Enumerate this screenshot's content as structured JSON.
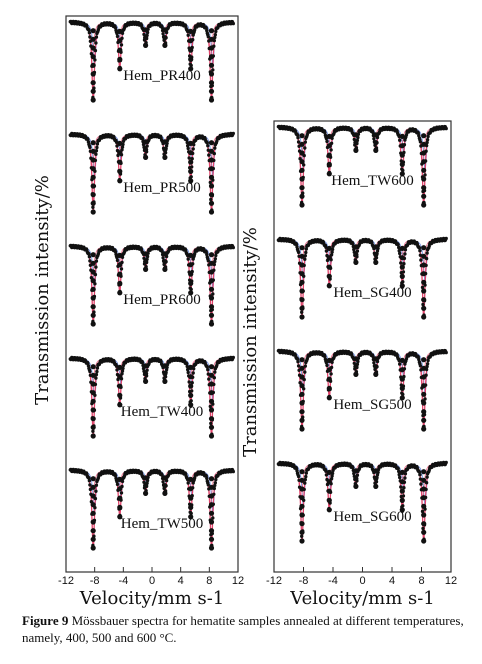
{
  "chart_data": [
    {
      "type": "scatter",
      "xlabel": "Velocity/mm s-1",
      "ylabel": "Transmission intensity/%",
      "xlim": [
        -12,
        12
      ],
      "x_ticks": [
        "-12",
        "-8",
        "-4",
        "0",
        "4",
        "8",
        "12"
      ],
      "panels": [
        {
          "label": "Hem_PR400",
          "line_positions_mm_s": [
            -8.2,
            -4.5,
            -0.9,
            1.8,
            5.4,
            8.3
          ],
          "relative_depth": [
            1.0,
            0.6,
            0.3,
            0.3,
            0.6,
            1.0
          ]
        },
        {
          "label": "Hem_PR500",
          "line_positions_mm_s": [
            -8.2,
            -4.5,
            -0.9,
            1.8,
            5.4,
            8.3
          ],
          "relative_depth": [
            1.0,
            0.6,
            0.3,
            0.3,
            0.6,
            1.0
          ]
        },
        {
          "label": "Hem_PR600",
          "line_positions_mm_s": [
            -8.2,
            -4.5,
            -0.9,
            1.8,
            5.4,
            8.3
          ],
          "relative_depth": [
            1.0,
            0.6,
            0.3,
            0.3,
            0.6,
            1.0
          ]
        },
        {
          "label": "Hem_TW400",
          "line_positions_mm_s": [
            -8.2,
            -4.5,
            -0.9,
            1.8,
            5.4,
            8.3
          ],
          "relative_depth": [
            1.0,
            0.6,
            0.3,
            0.3,
            0.6,
            1.0
          ]
        },
        {
          "label": "Hem_TW500",
          "line_positions_mm_s": [
            -8.2,
            -4.5,
            -0.9,
            1.8,
            5.4,
            8.3
          ],
          "relative_depth": [
            1.0,
            0.6,
            0.3,
            0.3,
            0.6,
            1.0
          ]
        }
      ]
    },
    {
      "type": "scatter",
      "xlabel": "Velocity/mm s-1",
      "ylabel": "Transmission intensity/%",
      "xlim": [
        -12,
        12
      ],
      "x_ticks": [
        "-12",
        "-8",
        "-4",
        "0",
        "4",
        "8",
        "12"
      ],
      "panels": [
        {
          "label": "Hem_TW600",
          "line_positions_mm_s": [
            -8.2,
            -4.5,
            -0.9,
            1.8,
            5.4,
            8.3
          ],
          "relative_depth": [
            1.0,
            0.6,
            0.3,
            0.3,
            0.6,
            1.0
          ]
        },
        {
          "label": "Hem_SG400",
          "line_positions_mm_s": [
            -8.2,
            -4.5,
            -0.9,
            1.8,
            5.4,
            8.3
          ],
          "relative_depth": [
            1.0,
            0.6,
            0.3,
            0.3,
            0.6,
            1.0
          ]
        },
        {
          "label": "Hem_SG500",
          "line_positions_mm_s": [
            -8.2,
            -4.5,
            -0.9,
            1.8,
            5.4,
            8.3
          ],
          "relative_depth": [
            1.0,
            0.6,
            0.3,
            0.3,
            0.6,
            1.0
          ]
        },
        {
          "label": "Hem_SG600",
          "line_positions_mm_s": [
            -8.2,
            -4.5,
            -0.9,
            1.8,
            5.4,
            8.3
          ],
          "relative_depth": [
            1.0,
            0.6,
            0.3,
            0.3,
            0.6,
            1.0
          ]
        }
      ]
    }
  ],
  "colors": {
    "data_points": "#111111",
    "fit_total": "#e0436a",
    "fit_subspectrum": "#4a6fd6",
    "axes": "#333333"
  },
  "caption": {
    "label": "Figure 9",
    "text": "Mössbauer spectra for hematite samples annealed at different temperatures, namely, 400, 500 and 600 °C."
  }
}
